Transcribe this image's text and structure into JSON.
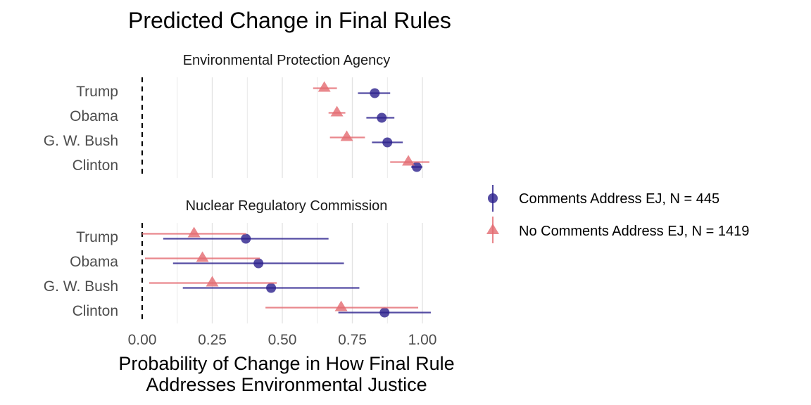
{
  "colors": {
    "comments": "#2b1f8c",
    "no_comments": "#e36a70",
    "grid": "#e3e3e3",
    "zero_line": "#000000"
  },
  "chart_data": {
    "type": "scatter",
    "title": "Predicted Change in Final Rules",
    "xlabel_lines": [
      "Probability of Change in How Final Rule",
      "Addresses Environmental Justice"
    ],
    "xlim": [
      0,
      1.03
    ],
    "xticks": [
      0,
      0.25,
      0.5,
      0.75,
      1.0
    ],
    "xtick_labels": [
      "0.00",
      "0.25",
      "0.50",
      "0.75",
      "1.00"
    ],
    "gridlines": [
      0.125,
      0.25,
      0.375,
      0.5,
      0.625,
      0.75,
      0.875,
      1.0
    ],
    "reference_line": 0,
    "categories": [
      "Trump",
      "Obama",
      "G. W. Bush",
      "Clinton"
    ],
    "legend": [
      {
        "name": "Comments Address EJ, N = 445",
        "marker": "circle",
        "color": "#2b1f8c"
      },
      {
        "name": "No Comments Address EJ, N = 1419",
        "marker": "triangle",
        "color": "#e36a70"
      }
    ],
    "legend_position": "right",
    "panels": [
      {
        "title": "Environmental Protection Agency",
        "series": [
          {
            "name": "Comments Address EJ, N = 445",
            "estimates": [
              0.83,
              0.855,
              0.875,
              0.98
            ],
            "lower": [
              0.77,
              0.8,
              0.82,
              0.96
            ],
            "upper": [
              0.885,
              0.9,
              0.93,
              1.0
            ]
          },
          {
            "name": "No Comments Address EJ, N = 1419",
            "estimates": [
              0.65,
              0.695,
              0.73,
              0.95
            ],
            "lower": [
              0.61,
              0.665,
              0.67,
              0.885
            ],
            "upper": [
              0.695,
              0.725,
              0.795,
              1.025
            ]
          }
        ]
      },
      {
        "title": "Nuclear Regulatory Commission",
        "series": [
          {
            "name": "Comments Address EJ, N = 445",
            "estimates": [
              0.37,
              0.415,
              0.46,
              0.865
            ],
            "lower": [
              0.075,
              0.11,
              0.145,
              0.7
            ],
            "upper": [
              0.665,
              0.72,
              0.775,
              1.03
            ]
          },
          {
            "name": "No Comments Address EJ, N = 1419",
            "estimates": [
              0.185,
              0.215,
              0.25,
              0.71
            ],
            "lower": [
              0.0,
              0.01,
              0.025,
              0.44
            ],
            "upper": [
              0.37,
              0.42,
              0.48,
              0.985
            ]
          }
        ]
      }
    ]
  }
}
